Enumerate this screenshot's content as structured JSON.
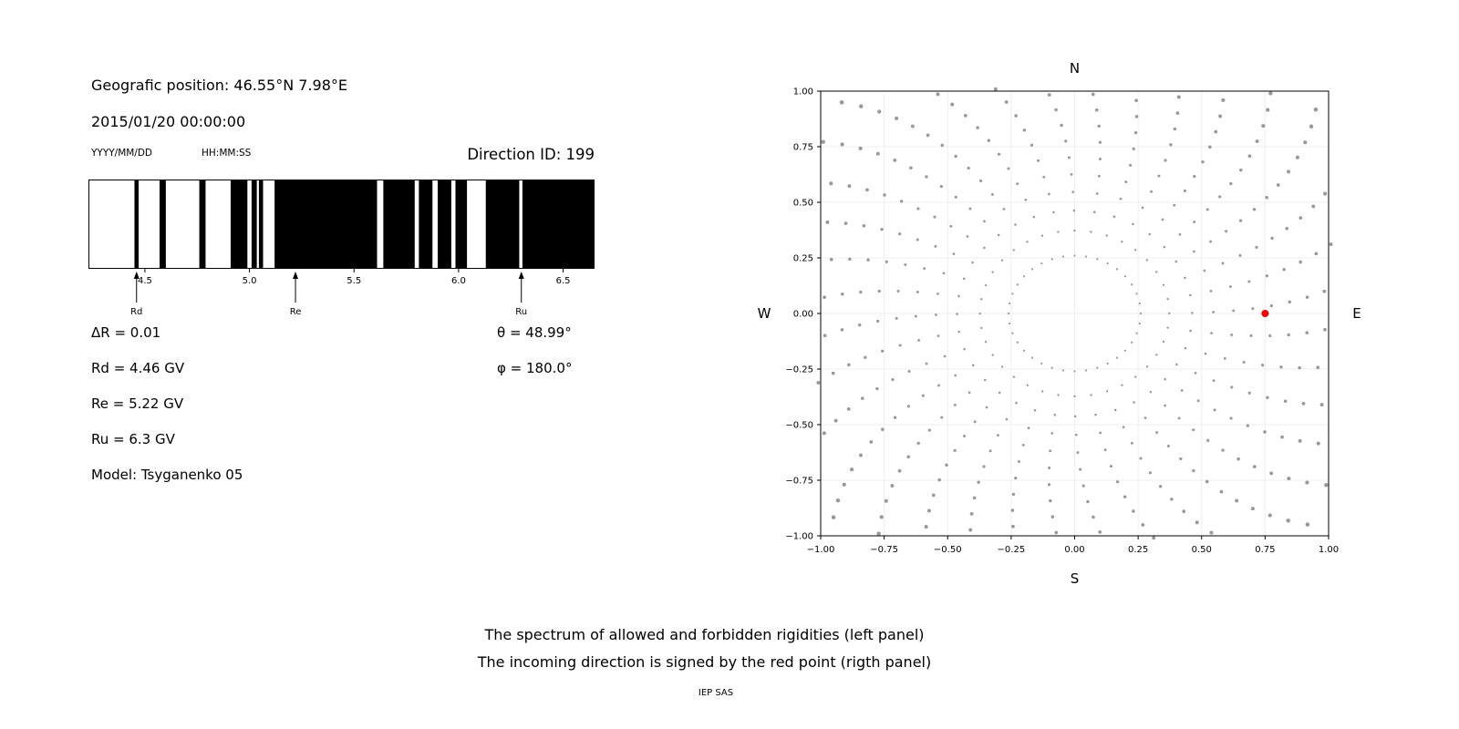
{
  "header": {
    "geo_position": "Geografic position: 46.55°N 7.98°E",
    "datetime": "2015/01/20 00:00:00",
    "date_format": "YYYY/MM/DD",
    "time_format": "HH:MM:SS",
    "direction_id": "Direction ID: 199"
  },
  "parameters": {
    "delta_r": "ΔR = 0.01",
    "theta": "θ = 48.99°",
    "rd": "Rd = 4.46 GV",
    "phi": "φ = 180.0°",
    "re": "Re = 5.22 GV",
    "ru": "Ru = 6.3 GV",
    "model": "Model: Tsyganenko 05"
  },
  "captions": {
    "line1": "The spectrum of allowed and forbidden rigidities (left panel)",
    "line2": "The incoming direction is signed by the red point (rigth panel)",
    "footer": "IEP SAS"
  },
  "chart_data": [
    {
      "id": "rigidity-spectrum",
      "type": "barcode",
      "description": "Allowed (white) and forbidden (black) rigidity bands vs rigidity in GV",
      "x_range": [
        4.23,
        6.65
      ],
      "x_ticks": [
        4.5,
        5.0,
        5.5,
        6.0,
        6.5
      ],
      "x_tick_labels": [
        "4.5",
        "5.0",
        "5.5",
        "6.0",
        "6.5"
      ],
      "forbidden_segments_gv": [
        [
          4.45,
          4.47
        ],
        [
          4.57,
          4.6
        ],
        [
          4.76,
          4.79
        ],
        [
          4.91,
          4.99
        ],
        [
          5.01,
          5.035
        ],
        [
          5.045,
          5.065
        ],
        [
          5.12,
          5.61
        ],
        [
          5.64,
          5.79
        ],
        [
          5.81,
          5.875
        ],
        [
          5.9,
          5.965
        ],
        [
          5.985,
          6.04
        ],
        [
          6.13,
          6.29
        ],
        [
          6.305,
          6.65
        ]
      ],
      "markers": [
        {
          "label": "Rd",
          "x": 4.46
        },
        {
          "label": "Re",
          "x": 5.22
        },
        {
          "label": "Ru",
          "x": 6.3
        }
      ],
      "bar_color": "#000000"
    },
    {
      "id": "incoming-direction",
      "type": "scatter",
      "description": "Asymptotic direction map; gray dotted trajectories every 10 degrees, red point marks incoming direction",
      "xlim": [
        -1,
        1
      ],
      "ylim": [
        -1,
        1
      ],
      "tick_values": [
        -1,
        -0.75,
        -0.5,
        -0.25,
        0,
        0.25,
        0.5,
        0.75,
        1
      ],
      "tick_labels": [
        "−1.00",
        "−0.75",
        "−0.50",
        "−0.25",
        "0.00",
        "0.25",
        "0.50",
        "0.75",
        "1.00"
      ],
      "compass": {
        "top": "N",
        "bottom": "S",
        "left": "W",
        "right": "E"
      },
      "red_point": {
        "x": 0.75,
        "y": 0.0
      },
      "rays": {
        "count": 36,
        "angle_step_deg": 10,
        "r_start": 0.26,
        "r_end": 1.32,
        "dots_per_ray": 15,
        "curl_deg": 14
      },
      "dot_color": "#999999",
      "red_color": "#ff0000",
      "grid_color": "#efefef"
    }
  ]
}
